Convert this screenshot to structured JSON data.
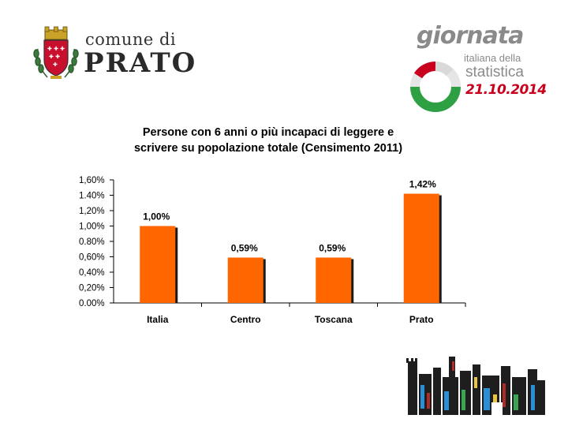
{
  "header": {
    "municipality_line1": "comune di",
    "municipality_line2": "PRATO",
    "event_word": "giornata",
    "event_line2": "italiana della",
    "event_line3": "statistica",
    "event_date": "21.10.2014"
  },
  "colors": {
    "bar": "#ff6600",
    "bar_shadow": "#1a1a1a",
    "accent_red": "#c8001e",
    "accent_green": "#2ea043"
  },
  "chart_data": {
    "type": "bar",
    "title": "Persone con 6 anni o più incapaci di leggere e scrivere su popolazione totale (Censimento 2011)",
    "title_lines": [
      "Persone con 6 anni o più incapaci di leggere e",
      "scrivere su popolazione totale (Censimento 2011)"
    ],
    "categories": [
      "Italia",
      "Centro",
      "Toscana",
      "Prato"
    ],
    "values": [
      1.0,
      0.59,
      0.59,
      1.42
    ],
    "value_labels": [
      "1,00%",
      "0,59%",
      "0,59%",
      "1,42%"
    ],
    "ytick_labels": [
      "0.00%",
      "0,20%",
      "0,40%",
      "0,60%",
      "0.80%",
      "1,00%",
      "1,20%",
      "1.40%",
      "1,60%"
    ],
    "ylim": [
      0,
      1.6
    ],
    "xlabel": "",
    "ylabel": "",
    "grid": false,
    "legend": "none"
  }
}
